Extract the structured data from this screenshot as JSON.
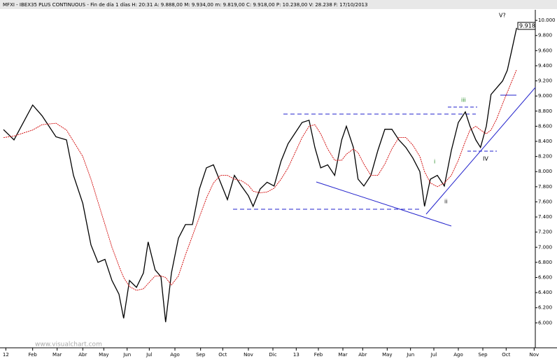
{
  "chart_data": {
    "type": "line",
    "header": "MFXI - IBEX35 PLUS CONTINUOUS - Fin de día 1 días  H: 20:31  A: 9.888,00  M: 9.934,00  m: 9.819,00  C: 9.918,00  P: 10.238,00  V: 28.238  F: 17/10/2013",
    "watermark": "www.visualchart.com",
    "last_price_label": "9.918",
    "annotations": [
      "V?",
      "iii",
      "i",
      "ii",
      "IV"
    ],
    "x": [
      3,
      12,
      28,
      36,
      48,
      57,
      63,
      71,
      78,
      84,
      90,
      96,
      102,
      106,
      111,
      117,
      123,
      127,
      133,
      138,
      142,
      147,
      153,
      159,
      165,
      171,
      177,
      183,
      189,
      195,
      201,
      207,
      213,
      217,
      223,
      229,
      235,
      241,
      247,
      253,
      259,
      265,
      270,
      275,
      281,
      287,
      293,
      297,
      303,
      307,
      312,
      318,
      324,
      330,
      336,
      342,
      348,
      354,
      360,
      364,
      369,
      375,
      381,
      387,
      393,
      399,
      403,
      408,
      412,
      417,
      421,
      426,
      431,
      435,
      439,
      443
    ],
    "series": [
      {
        "color": "#000000",
        "values": [
          8556,
          8420,
          8880,
          8740,
          8460,
          8420,
          7950,
          7580,
          7030,
          6800,
          6840,
          6560,
          6380,
          6060,
          6560,
          6470,
          6660,
          7070,
          6700,
          6610,
          6010,
          6660,
          7120,
          7300,
          7300,
          7770,
          8050,
          8090,
          7860,
          7630,
          7950,
          7810,
          7680,
          7540,
          7770,
          7860,
          7810,
          8140,
          8370,
          8510,
          8650,
          8680,
          8320,
          8050,
          8090,
          7950,
          8420,
          8600,
          8320,
          7900,
          7810,
          7950,
          8280,
          8560,
          8560,
          8420,
          8320,
          8180,
          8000,
          7540,
          7900,
          7950,
          7810,
          8280,
          8650,
          8790,
          8600,
          8420,
          8320,
          8600,
          9020,
          9110,
          9200,
          9340,
          9620,
          9900
        ]
      },
      {
        "color": "#d00000",
        "values": [
          8450,
          8470,
          8550,
          8620,
          8640,
          8550,
          8400,
          8200,
          7900,
          7600,
          7300,
          7000,
          6750,
          6600,
          6480,
          6430,
          6450,
          6520,
          6620,
          6620,
          6600,
          6500,
          6620,
          6900,
          7150,
          7400,
          7650,
          7850,
          7950,
          7950,
          7900,
          7880,
          7820,
          7740,
          7720,
          7730,
          7780,
          7900,
          8050,
          8250,
          8450,
          8600,
          8620,
          8500,
          8300,
          8150,
          8150,
          8230,
          8300,
          8250,
          8100,
          7950,
          7950,
          8100,
          8300,
          8450,
          8450,
          8350,
          8200,
          8000,
          7850,
          7800,
          7850,
          7950,
          8150,
          8400,
          8550,
          8600,
          8550,
          8500,
          8550,
          8700,
          8900,
          9050,
          9200,
          9350
        ]
      }
    ],
    "xlim": [
      0,
      459
    ],
    "ylim": [
      5670,
      10140
    ],
    "xticks": [
      {
        "value": 5,
        "label": "12"
      },
      {
        "value": 28,
        "label": "Feb"
      },
      {
        "value": 49,
        "label": "Mar"
      },
      {
        "value": 71,
        "label": "Abr"
      },
      {
        "value": 89,
        "label": "May"
      },
      {
        "value": 109,
        "label": "Jun"
      },
      {
        "value": 128,
        "label": "Jul"
      },
      {
        "value": 150,
        "label": "Ago"
      },
      {
        "value": 172,
        "label": "Sep"
      },
      {
        "value": 191,
        "label": "Oct"
      },
      {
        "value": 213,
        "label": "Nov"
      },
      {
        "value": 234,
        "label": "Dic"
      },
      {
        "value": 254,
        "label": "13"
      },
      {
        "value": 273,
        "label": "Feb"
      },
      {
        "value": 294,
        "label": "Mar"
      },
      {
        "value": 311,
        "label": "Abr"
      },
      {
        "value": 332,
        "label": "May"
      },
      {
        "value": 352,
        "label": "Jun"
      },
      {
        "value": 372,
        "label": "Jul"
      },
      {
        "value": 393,
        "label": "Ago"
      },
      {
        "value": 414,
        "label": "Sep"
      },
      {
        "value": 434,
        "label": "Oct"
      },
      {
        "value": 458,
        "label": "Nov"
      }
    ],
    "yticks": [
      {
        "value": 6000,
        "label": "6.000"
      },
      {
        "value": 6200,
        "label": "6.200"
      },
      {
        "value": 6400,
        "label": "6.400"
      },
      {
        "value": 6600,
        "label": "6.600"
      },
      {
        "value": 6800,
        "label": "6.800"
      },
      {
        "value": 7000,
        "label": "7.000"
      },
      {
        "value": 7200,
        "label": "7.200"
      },
      {
        "value": 7400,
        "label": "7.400"
      },
      {
        "value": 7600,
        "label": "7.600"
      },
      {
        "value": 7800,
        "label": "7.800"
      },
      {
        "value": 8000,
        "label": "8.000"
      },
      {
        "value": 8200,
        "label": "8.200"
      },
      {
        "value": 8400,
        "label": "8.400"
      },
      {
        "value": 8600,
        "label": "8.600"
      },
      {
        "value": 8800,
        "label": "8.800"
      },
      {
        "value": 9000,
        "label": "9.000"
      },
      {
        "value": 9200,
        "label": "9.200"
      },
      {
        "value": 9400,
        "label": "9.400"
      },
      {
        "value": 9600,
        "label": "9.600"
      },
      {
        "value": 9800,
        "label": "9.800"
      },
      {
        "value": 10000,
        "label": "10.000"
      }
    ]
  }
}
